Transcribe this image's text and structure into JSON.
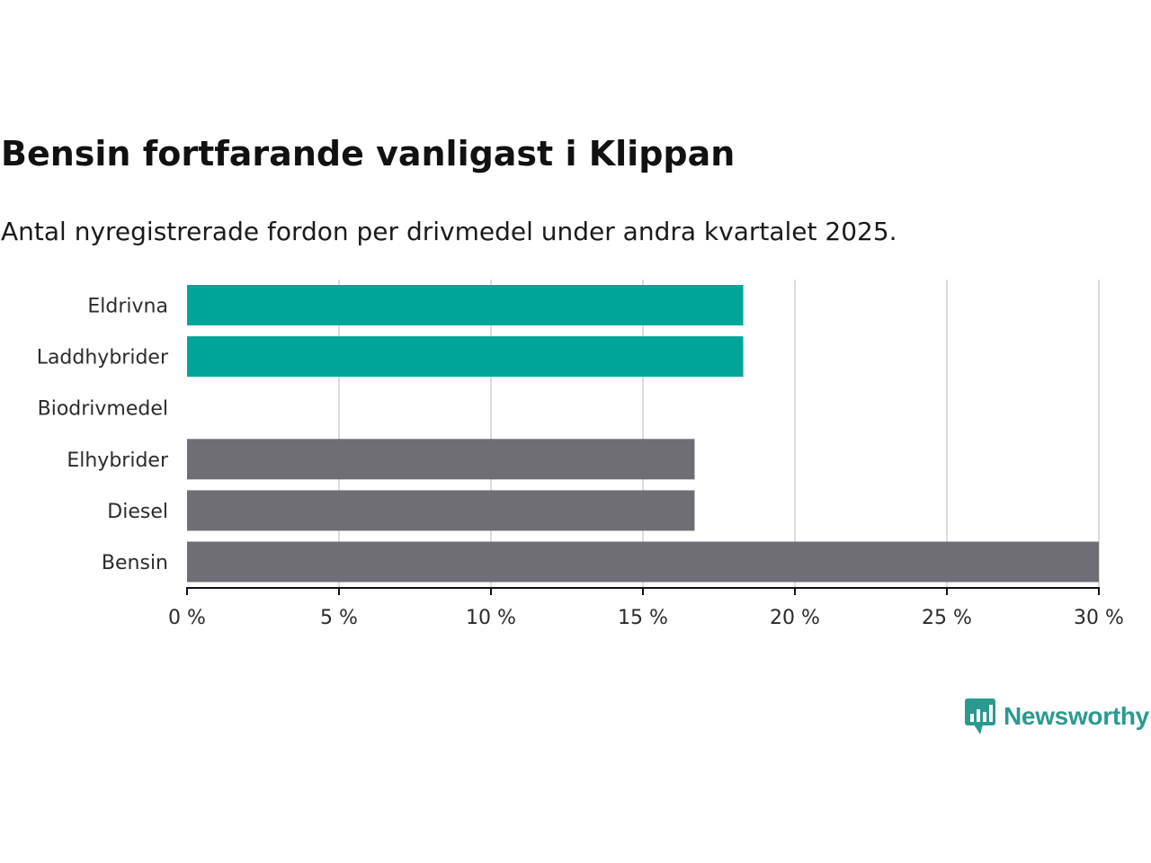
{
  "header": {
    "title": "Bensin fortfarande vanligast i Klippan",
    "subtitle": "Antal nyregistrerade fordon per drivmedel under andra kvartalet 2025."
  },
  "chart_data": {
    "type": "bar",
    "orientation": "horizontal",
    "categories": [
      "Eldrivna",
      "Laddhybrider",
      "Biodrivmedel",
      "Elhybrider",
      "Diesel",
      "Bensin"
    ],
    "values": [
      18.3,
      18.3,
      0,
      16.7,
      16.7,
      30.0
    ],
    "colors": [
      "#00a59a",
      "#00a59a",
      "#00a59a",
      "#6f6e74",
      "#6f6e74",
      "#6f6e74"
    ],
    "xlim": [
      0,
      30
    ],
    "xticks": [
      0,
      5,
      10,
      15,
      20,
      25,
      30
    ],
    "tick_labels": [
      "0 %",
      "5 %",
      "10 %",
      "15 %",
      "20 %",
      "25 %",
      "30 %"
    ],
    "grid": true,
    "xlabel": "",
    "ylabel": ""
  },
  "brand": {
    "name": "Newsworthy",
    "icon": "newsworthy-logo-icon",
    "color": "#2a9a8f"
  }
}
